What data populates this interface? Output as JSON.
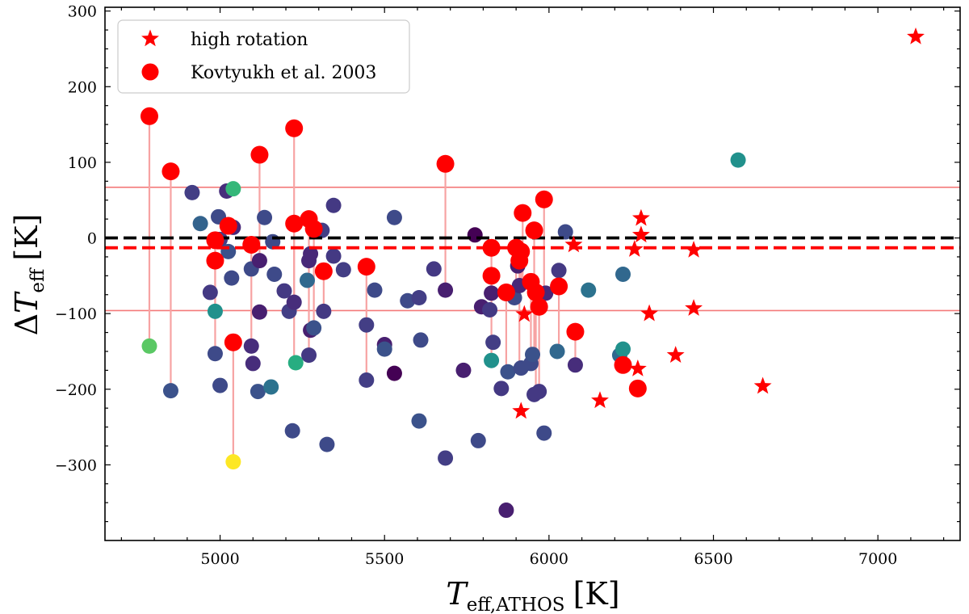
{
  "chart_data": {
    "type": "scatter",
    "xlabel": {
      "main": "T",
      "sub": "eff,ATHOS",
      "unit": "[K]"
    },
    "ylabel": {
      "prefix": "Δ",
      "main": "T",
      "sub": "eff",
      "unit": "[K]"
    },
    "xlim": [
      4650,
      7250
    ],
    "ylim": [
      -400,
      305
    ],
    "xticks": [
      5000,
      5500,
      6000,
      6500,
      7000
    ],
    "xtick_labels": [
      "5000",
      "5500",
      "6000",
      "6500",
      "7000"
    ],
    "yticks": [
      -300,
      -200,
      -100,
      0,
      100,
      200,
      300
    ],
    "ytick_labels": [
      "−300",
      "−200",
      "−100",
      "0",
      "100",
      "200",
      "300"
    ],
    "grid": false,
    "legend": {
      "placement": "top-left",
      "entries": [
        {
          "marker": "star",
          "label": "high rotation"
        },
        {
          "marker": "circle",
          "label": "Kovtyukh et al. 2003"
        }
      ]
    },
    "colors": {
      "highlight": "#ff0000",
      "connector": "#f7a3a3",
      "reference_line": "#000000",
      "mean_line": "#ff0000",
      "band_line": "#f47a7a"
    },
    "reference_line_y": 0,
    "mean_line_y": -13,
    "band_lines_y": [
      67,
      -96
    ],
    "sample_points": [
      {
        "x": 4785,
        "y": -143,
        "color": "#5ac864"
      },
      {
        "x": 4850,
        "y": -202,
        "color": "#3b528b"
      },
      {
        "x": 4915,
        "y": 60,
        "color": "#433e85"
      },
      {
        "x": 4940,
        "y": 19,
        "color": "#33638d"
      },
      {
        "x": 4970,
        "y": -72,
        "color": "#443983"
      },
      {
        "x": 4985,
        "y": -97,
        "color": "#21918c"
      },
      {
        "x": 4985,
        "y": -153,
        "color": "#3e4a89"
      },
      {
        "x": 4995,
        "y": 28,
        "color": "#3e4a89"
      },
      {
        "x": 5000,
        "y": -195,
        "color": "#3e4a89"
      },
      {
        "x": 5000,
        "y": -2,
        "color": "#433e85"
      },
      {
        "x": 5020,
        "y": 62,
        "color": "#472d7b"
      },
      {
        "x": 5025,
        "y": -18,
        "color": "#3b528b"
      },
      {
        "x": 5035,
        "y": -53,
        "color": "#3e4a89"
      },
      {
        "x": 5040,
        "y": 14,
        "color": "#482878"
      },
      {
        "x": 5040,
        "y": 65,
        "color": "#35b779"
      },
      {
        "x": 5040,
        "y": -296,
        "color": "#fde725"
      },
      {
        "x": 5095,
        "y": -41,
        "color": "#3e4a89"
      },
      {
        "x": 5095,
        "y": -143,
        "color": "#472d7b"
      },
      {
        "x": 5100,
        "y": -166,
        "color": "#472d7b"
      },
      {
        "x": 5115,
        "y": -203,
        "color": "#3b528b"
      },
      {
        "x": 5120,
        "y": -30,
        "color": "#481f70"
      },
      {
        "x": 5120,
        "y": -98,
        "color": "#481f70"
      },
      {
        "x": 5135,
        "y": 27,
        "color": "#3e4a89"
      },
      {
        "x": 5155,
        "y": -197,
        "color": "#2c728e"
      },
      {
        "x": 5160,
        "y": -5,
        "color": "#3e4a89"
      },
      {
        "x": 5165,
        "y": -48,
        "color": "#3e4a89"
      },
      {
        "x": 5195,
        "y": -70,
        "color": "#443983"
      },
      {
        "x": 5210,
        "y": -97,
        "color": "#433e85"
      },
      {
        "x": 5220,
        "y": -255,
        "color": "#3e4a89"
      },
      {
        "x": 5225,
        "y": -85,
        "color": "#472d7b"
      },
      {
        "x": 5230,
        "y": -165,
        "color": "#27ad81"
      },
      {
        "x": 5265,
        "y": -56,
        "color": "#31688e"
      },
      {
        "x": 5270,
        "y": -30,
        "color": "#482878"
      },
      {
        "x": 5270,
        "y": -155,
        "color": "#443983"
      },
      {
        "x": 5275,
        "y": -122,
        "color": "#481f70"
      },
      {
        "x": 5275,
        "y": -21,
        "color": "#482878"
      },
      {
        "x": 5285,
        "y": -119,
        "color": "#3b528b"
      },
      {
        "x": 5310,
        "y": 10,
        "color": "#433e85"
      },
      {
        "x": 5315,
        "y": -97,
        "color": "#443983"
      },
      {
        "x": 5325,
        "y": -273,
        "color": "#3e4a89"
      },
      {
        "x": 5345,
        "y": 43,
        "color": "#443983"
      },
      {
        "x": 5345,
        "y": -24,
        "color": "#443983"
      },
      {
        "x": 5375,
        "y": -42,
        "color": "#433e85"
      },
      {
        "x": 5445,
        "y": -115,
        "color": "#433e85"
      },
      {
        "x": 5445,
        "y": -188,
        "color": "#433e85"
      },
      {
        "x": 5470,
        "y": -69,
        "color": "#3e4a89"
      },
      {
        "x": 5500,
        "y": -141,
        "color": "#481f70"
      },
      {
        "x": 5500,
        "y": -147,
        "color": "#3b528b"
      },
      {
        "x": 5530,
        "y": 27,
        "color": "#3e4a89"
      },
      {
        "x": 5530,
        "y": -179,
        "color": "#440154"
      },
      {
        "x": 5570,
        "y": -83,
        "color": "#3e4a89"
      },
      {
        "x": 5605,
        "y": -79,
        "color": "#433e85"
      },
      {
        "x": 5605,
        "y": -242,
        "color": "#3b528b"
      },
      {
        "x": 5610,
        "y": -135,
        "color": "#3e4a89"
      },
      {
        "x": 5650,
        "y": -41,
        "color": "#443983"
      },
      {
        "x": 5685,
        "y": -69,
        "color": "#481f70"
      },
      {
        "x": 5685,
        "y": -291,
        "color": "#433e85"
      },
      {
        "x": 5740,
        "y": -175,
        "color": "#481f70"
      },
      {
        "x": 5775,
        "y": 4,
        "color": "#440154"
      },
      {
        "x": 5785,
        "y": -268,
        "color": "#3e4a89"
      },
      {
        "x": 5795,
        "y": -91,
        "color": "#481f70"
      },
      {
        "x": 5820,
        "y": -95,
        "color": "#443983"
      },
      {
        "x": 5825,
        "y": -162,
        "color": "#21918c"
      },
      {
        "x": 5825,
        "y": -73,
        "color": "#481f70"
      },
      {
        "x": 5830,
        "y": -138,
        "color": "#433e85"
      },
      {
        "x": 5855,
        "y": -199,
        "color": "#443983"
      },
      {
        "x": 5870,
        "y": -360,
        "color": "#481f70"
      },
      {
        "x": 5875,
        "y": -177,
        "color": "#3b528b"
      },
      {
        "x": 5895,
        "y": -79,
        "color": "#3e4a89"
      },
      {
        "x": 5905,
        "y": -37,
        "color": "#481f70"
      },
      {
        "x": 5910,
        "y": -63,
        "color": "#482878"
      },
      {
        "x": 5915,
        "y": -172,
        "color": "#3e4a89"
      },
      {
        "x": 5945,
        "y": -166,
        "color": "#3e4a89"
      },
      {
        "x": 5950,
        "y": -154,
        "color": "#3b528b"
      },
      {
        "x": 5955,
        "y": -207,
        "color": "#443983"
      },
      {
        "x": 5970,
        "y": -203,
        "color": "#443983"
      },
      {
        "x": 5985,
        "y": -258,
        "color": "#3e4a89"
      },
      {
        "x": 5990,
        "y": -73,
        "color": "#482878"
      },
      {
        "x": 6025,
        "y": -150,
        "color": "#31688e"
      },
      {
        "x": 6030,
        "y": -43,
        "color": "#443983"
      },
      {
        "x": 6050,
        "y": 8,
        "color": "#3e4a89"
      },
      {
        "x": 6080,
        "y": -168,
        "color": "#472d7b"
      },
      {
        "x": 6120,
        "y": -69,
        "color": "#2c728e"
      },
      {
        "x": 6215,
        "y": -155,
        "color": "#31688e"
      },
      {
        "x": 6225,
        "y": -48,
        "color": "#31688e"
      },
      {
        "x": 6225,
        "y": -147,
        "color": "#21918c"
      },
      {
        "x": 6575,
        "y": 103,
        "color": "#21918c"
      }
    ],
    "kovtyukh_points": [
      {
        "x": 4785,
        "y": 161,
        "connect_to": -143
      },
      {
        "x": 4850,
        "y": 88,
        "connect_to": -202
      },
      {
        "x": 4985,
        "y": -3,
        "connect_to": -97
      },
      {
        "x": 4985,
        "y": -30,
        "connect_to": -153
      },
      {
        "x": 5025,
        "y": 16
      },
      {
        "x": 5040,
        "y": -138,
        "connect_to": -296
      },
      {
        "x": 5095,
        "y": -9,
        "connect_to": -143
      },
      {
        "x": 5120,
        "y": 110,
        "connect_to": -30
      },
      {
        "x": 5225,
        "y": 145,
        "connect_to": -165
      },
      {
        "x": 5225,
        "y": 19,
        "connect_to": -85
      },
      {
        "x": 5270,
        "y": 25,
        "connect_to": -155
      },
      {
        "x": 5285,
        "y": 12,
        "connect_to": -119
      },
      {
        "x": 5315,
        "y": -44,
        "connect_to": -97
      },
      {
        "x": 5445,
        "y": -38,
        "connect_to": -188
      },
      {
        "x": 5685,
        "y": 98,
        "connect_to": -69
      },
      {
        "x": 5825,
        "y": -13,
        "connect_to": -73
      },
      {
        "x": 5825,
        "y": -50,
        "connect_to": -162
      },
      {
        "x": 5870,
        "y": -72,
        "connect_to": -177
      },
      {
        "x": 5900,
        "y": -13,
        "connect_to": -79
      },
      {
        "x": 5910,
        "y": -30,
        "connect_to": -172
      },
      {
        "x": 5915,
        "y": -18,
        "connect_to": -63
      },
      {
        "x": 5920,
        "y": 33,
        "connect_to": -63
      },
      {
        "x": 5945,
        "y": -58,
        "connect_to": -166
      },
      {
        "x": 5955,
        "y": 10,
        "connect_to": -154
      },
      {
        "x": 5960,
        "y": -72,
        "connect_to": -207
      },
      {
        "x": 5970,
        "y": -91,
        "connect_to": -203
      },
      {
        "x": 5985,
        "y": 51,
        "connect_to": -73
      },
      {
        "x": 6030,
        "y": -64,
        "connect_to": -150
      },
      {
        "x": 6080,
        "y": -124,
        "connect_to": -168
      },
      {
        "x": 6225,
        "y": -168,
        "connect_to": -155
      },
      {
        "x": 6270,
        "y": -199
      }
    ],
    "high_rotation_points": [
      {
        "x": 5915,
        "y": -229
      },
      {
        "x": 5925,
        "y": -101
      },
      {
        "x": 6075,
        "y": -9
      },
      {
        "x": 6155,
        "y": -215
      },
      {
        "x": 6260,
        "y": -15
      },
      {
        "x": 6270,
        "y": -173
      },
      {
        "x": 6280,
        "y": 26
      },
      {
        "x": 6280,
        "y": 4
      },
      {
        "x": 6305,
        "y": -100
      },
      {
        "x": 6385,
        "y": -155
      },
      {
        "x": 6440,
        "y": -93
      },
      {
        "x": 6440,
        "y": -16
      },
      {
        "x": 6650,
        "y": -196
      },
      {
        "x": 7115,
        "y": 266
      }
    ]
  }
}
